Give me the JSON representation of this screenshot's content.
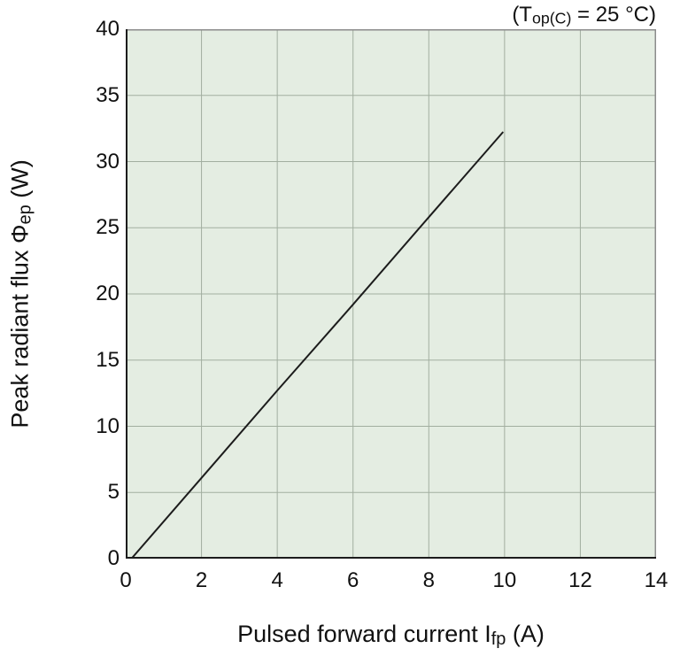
{
  "chart_data": {
    "type": "line",
    "title": "",
    "condition": "(Top(C) = 25 °C)",
    "condition_parts": [
      {
        "t": "(T"
      },
      {
        "t": "op(C)",
        "sub": true
      },
      {
        "t": " = 25 °C)"
      }
    ],
    "xlabel": "Pulsed forward current Ifp (A)",
    "xlabel_parts": [
      {
        "t": "Pulsed forward current I"
      },
      {
        "t": "fp",
        "sub": true
      },
      {
        "t": " (A)"
      }
    ],
    "ylabel": "Peak radiant flux Φep (W)",
    "ylabel_parts": [
      {
        "t": "Peak radiant flux Φ"
      },
      {
        "t": "ep",
        "sub": true
      },
      {
        "t": " (W)"
      }
    ],
    "xlim": [
      0,
      14
    ],
    "ylim": [
      0,
      40
    ],
    "xticks": [
      0,
      2,
      4,
      6,
      8,
      10,
      12,
      14
    ],
    "yticks": [
      0,
      5,
      10,
      15,
      20,
      25,
      30,
      35,
      40
    ],
    "grid": true,
    "legend": "none",
    "series": [
      {
        "name": "peak-radiant-flux-vs-pulsed-forward-current",
        "points": [
          [
            0.15,
            0
          ],
          [
            2,
            6.1
          ],
          [
            4,
            12.7
          ],
          [
            6,
            19.2
          ],
          [
            8,
            25.8
          ],
          [
            9.95,
            32.2
          ]
        ]
      }
    ],
    "colors": {
      "plot_bg": "#e4ede2",
      "gridline": "#a2aea0",
      "frame_gray": "#8c8c8c",
      "axis_dark": "#1c1c1c",
      "line": "#1c1c1c",
      "text": "#111111",
      "page_bg": "#ffffff"
    }
  }
}
